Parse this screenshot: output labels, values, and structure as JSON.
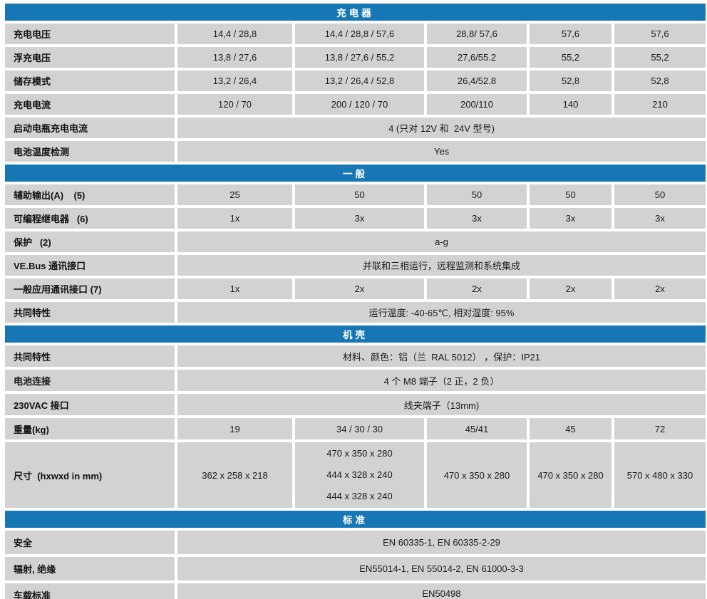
{
  "colors": {
    "header_bg": "#1777b4",
    "cell_bg": "#d2d2d2",
    "header_text": "#ffffff",
    "cell_text": "#1a1a1a"
  },
  "sections": [
    {
      "title": "充电器",
      "rows": [
        {
          "label": "充电电压",
          "cells": [
            "14,4 / 28,8",
            "14,4 / 28,8 / 57,6",
            "28,8/ 57,6",
            "57,6",
            "57,6"
          ]
        },
        {
          "label": "浮充电压",
          "cells": [
            "13,8 / 27,6",
            "13,8 / 27,6 / 55,2",
            "27,6/55.2",
            "55,2",
            "55,2"
          ]
        },
        {
          "label": "储存模式",
          "cells": [
            "13,2 / 26,4",
            "13,2 / 26,4 / 52,8",
            "26,4/52.8",
            "52,8",
            "52,8"
          ]
        },
        {
          "label": "充电电流",
          "cells": [
            "120 / 70",
            "200 / 120 / 70",
            "200/110",
            "140",
            "210"
          ]
        },
        {
          "label": "启动电瓶充电电流",
          "span": "4 (只对 12V 和  24V 型号)"
        },
        {
          "label": "电池温度检测",
          "span": "Yes"
        }
      ]
    },
    {
      "title": "一般",
      "rows": [
        {
          "label": "辅助输出(A)    (5)",
          "cells": [
            "25",
            "50",
            "50",
            "50",
            "50"
          ]
        },
        {
          "label": "可编程继电器   (6)",
          "cells": [
            "1x",
            "3x",
            "3x",
            "3x",
            "3x"
          ]
        },
        {
          "label": "保护   (2)",
          "span": "a-g"
        },
        {
          "label": "VE.Bus 通讯接口",
          "span": "并联和三相运行，远程监测和系统集成"
        },
        {
          "label": "一般应用通讯接口 (7)",
          "cells": [
            "1x",
            "2x",
            "2x",
            "2x",
            "2x"
          ]
        },
        {
          "label": "共同特性",
          "span": "运行温度: -40-65℃, 相对湿度: 95%"
        }
      ]
    },
    {
      "title": "机壳",
      "rows": [
        {
          "label": "共同特性",
          "span": "材料、颜色：铝（兰  RAL 5012） ，保护：IP21"
        },
        {
          "label": "电池连接",
          "span": "4 个 M8 端子（2 正，2 负）"
        },
        {
          "label": "230VAC 接口",
          "span": "线夹端子（13mm)"
        },
        {
          "label": "重量(kg)",
          "cells": [
            "19",
            "34 / 30 / 30",
            "45/41",
            "45",
            "72"
          ]
        },
        {
          "label": "尺寸  (hxwxd in mm)",
          "col1": "362 x 258 x 218",
          "col2_lines": [
            "470 x 350 x 280",
            "444 x 328 x 240",
            "444 x 328 x 240"
          ],
          "col3": "470 x 350 x 280",
          "col4": "470 x 350 x 280",
          "col5": "570 x 480 x 330"
        }
      ]
    },
    {
      "title": "标准",
      "rows": [
        {
          "label": "安全",
          "span": "EN 60335-1, EN 60335-2-29"
        },
        {
          "label": "辐射, 绝缘",
          "span": "EN55014-1, EN 55014-2, EN 61000-3-3"
        },
        {
          "label": "车载标准",
          "span": "EN50498"
        }
      ]
    }
  ]
}
